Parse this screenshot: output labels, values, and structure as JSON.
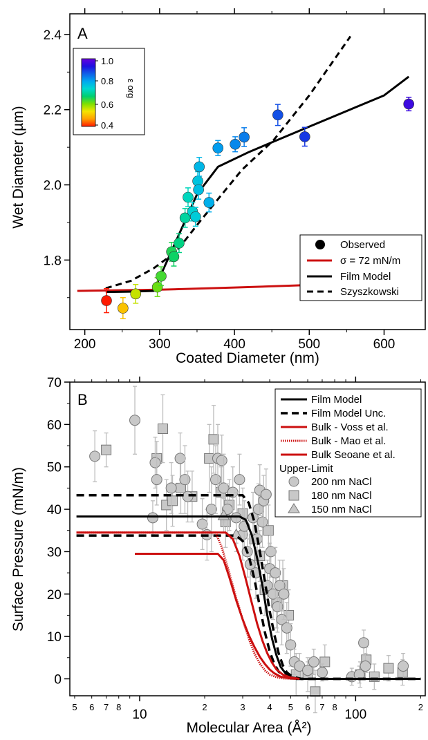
{
  "colors": {
    "black": "#000000",
    "red": "#cc1010",
    "gray_marker": "#c8c8c8",
    "errorbar_gray": "#bdbdbd"
  },
  "chart_data": [
    {
      "type": "scatter",
      "panel_label": "A",
      "xlabel": "Coated Diameter (nm)",
      "ylabel": "Wet Diameter (µm)",
      "xlim": [
        180,
        655
      ],
      "ylim": [
        1.615,
        2.455
      ],
      "x_ticks": [
        200,
        300,
        400,
        500,
        600
      ],
      "y_ticks": [
        1.8,
        2.0,
        2.2,
        2.4
      ],
      "y_tick_labels": [
        "1.8",
        "2.0",
        "2.2",
        "2.4"
      ],
      "colorbar": {
        "label": "ε org",
        "ticks": [
          "1.0",
          "0.8",
          "0.6",
          "0.4"
        ],
        "range": [
          0.4,
          1.0
        ],
        "colors": [
          "#ff1a00",
          "#ffa000",
          "#f5e400",
          "#7ee000",
          "#00d070",
          "#00d8d0",
          "#00a8f0",
          "#1060e8",
          "#1e10e0",
          "#6800e0"
        ]
      },
      "legend": {
        "position": "bottom-right",
        "entries": [
          "Observed",
          "σ = 72 mN/m",
          "Film Model",
          "Szyszkowski"
        ]
      },
      "points": [
        {
          "x": 229,
          "y": 1.692,
          "err": 0.032,
          "eps": 0.4
        },
        {
          "x": 251,
          "y": 1.672,
          "err": 0.028,
          "eps": 0.5
        },
        {
          "x": 268,
          "y": 1.71,
          "err": 0.025,
          "eps": 0.56
        },
        {
          "x": 297,
          "y": 1.728,
          "err": 0.025,
          "eps": 0.61
        },
        {
          "x": 302,
          "y": 1.757,
          "err": 0.025,
          "eps": 0.63
        },
        {
          "x": 316,
          "y": 1.822,
          "err": 0.025,
          "eps": 0.65
        },
        {
          "x": 319,
          "y": 1.809,
          "err": 0.025,
          "eps": 0.66
        },
        {
          "x": 326,
          "y": 1.845,
          "err": 0.025,
          "eps": 0.68
        },
        {
          "x": 334,
          "y": 1.912,
          "err": 0.025,
          "eps": 0.7
        },
        {
          "x": 338,
          "y": 1.967,
          "err": 0.025,
          "eps": 0.72
        },
        {
          "x": 344,
          "y": 1.929,
          "err": 0.025,
          "eps": 0.74
        },
        {
          "x": 348,
          "y": 1.915,
          "err": 0.025,
          "eps": 0.75
        },
        {
          "x": 351,
          "y": 2.01,
          "err": 0.025,
          "eps": 0.76
        },
        {
          "x": 352,
          "y": 1.987,
          "err": 0.025,
          "eps": 0.77
        },
        {
          "x": 353,
          "y": 2.048,
          "err": 0.025,
          "eps": 0.78
        },
        {
          "x": 366,
          "y": 1.953,
          "err": 0.025,
          "eps": 0.79
        },
        {
          "x": 378,
          "y": 2.098,
          "err": 0.02,
          "eps": 0.81
        },
        {
          "x": 401,
          "y": 2.108,
          "err": 0.02,
          "eps": 0.83
        },
        {
          "x": 413,
          "y": 2.127,
          "err": 0.025,
          "eps": 0.84
        },
        {
          "x": 458,
          "y": 2.186,
          "err": 0.028,
          "eps": 0.88
        },
        {
          "x": 494,
          "y": 2.128,
          "err": 0.025,
          "eps": 0.9
        },
        {
          "x": 633,
          "y": 2.215,
          "err": 0.018,
          "eps": 0.96
        }
      ],
      "series": [
        {
          "name": "σ = 72 mN/m",
          "x": [
            190,
            300,
            400,
            493
          ],
          "y": [
            1.718,
            1.721,
            1.727,
            1.733
          ]
        },
        {
          "name": "Film Model",
          "x": [
            228,
            260,
            292,
            350,
            378,
            420,
            500,
            600,
            633
          ],
          "y": [
            1.715,
            1.716,
            1.718,
            1.975,
            2.048,
            2.088,
            2.155,
            2.238,
            2.288
          ]
        },
        {
          "name": "Szyszkowski",
          "x": [
            228,
            262,
            292,
            322,
            352,
            378,
            410,
            452,
            500,
            555
          ],
          "y": [
            1.725,
            1.745,
            1.778,
            1.822,
            1.898,
            1.962,
            2.04,
            2.118,
            2.238,
            2.395
          ]
        }
      ]
    },
    {
      "type": "scatter",
      "panel_label": "B",
      "xlabel": "Molecular Area (Å²)",
      "ylabel": "Surface Pressure (mN/m)",
      "xscale": "log",
      "xlim": [
        4.75,
        210
      ],
      "ylim": [
        -4,
        70
      ],
      "y_ticks": [
        0,
        10,
        20,
        30,
        40,
        50,
        60,
        70
      ],
      "y_tick_labels": [
        "0",
        "10",
        "20",
        "30",
        "40",
        "50",
        "60",
        "70"
      ],
      "x_major_ticks": [
        10,
        100
      ],
      "x_major_labels": [
        "10",
        "100"
      ],
      "x_minor_label_values": [
        5,
        6,
        7,
        8,
        20,
        30,
        40,
        50,
        60,
        70,
        80,
        200
      ],
      "x_minor_labels": [
        "5",
        "6",
        "7",
        "8",
        "2",
        "3",
        "4",
        "5",
        "6",
        "7",
        "8",
        "2"
      ],
      "legend": {
        "position": "top-right",
        "entries": [
          "Film Model",
          "Film Model Unc.",
          "Bulk - Voss et al.",
          "Bulk - Mao et al.",
          "Bulk Seoane et al.",
          "Upper-Limit",
          "200 nm NaCl",
          "180 nm NaCl",
          "150 nm NaCl"
        ]
      },
      "circles": [
        [
          6.2,
          52.5,
          6
        ],
        [
          9.5,
          61,
          8
        ],
        [
          11.8,
          51,
          6
        ],
        [
          12,
          47,
          6
        ],
        [
          11.5,
          38,
          4
        ],
        [
          14,
          45,
          6
        ],
        [
          15.4,
          52,
          6
        ],
        [
          16.2,
          47,
          8
        ],
        [
          16.7,
          43,
          6
        ],
        [
          19.5,
          36.5,
          6
        ],
        [
          20.5,
          34,
          6
        ],
        [
          21.5,
          40,
          10
        ],
        [
          22.5,
          47,
          8
        ],
        [
          23,
          52,
          8
        ],
        [
          24,
          51.5,
          6
        ],
        [
          24.5,
          45,
          8
        ],
        [
          25.5,
          40,
          6
        ],
        [
          27,
          44,
          6
        ],
        [
          28,
          38,
          6
        ],
        [
          29,
          47,
          6
        ],
        [
          30,
          34,
          6
        ],
        [
          30.5,
          36,
          6
        ],
        [
          31.5,
          30,
          6
        ],
        [
          32.5,
          27,
          6
        ],
        [
          33.5,
          38,
          6
        ],
        [
          34.5,
          25,
          6
        ],
        [
          35,
          33,
          6
        ],
        [
          35.5,
          40,
          6
        ],
        [
          36,
          44.5,
          6
        ],
        [
          37,
          37,
          6
        ],
        [
          37.5,
          42,
          6
        ],
        [
          38.5,
          43.5,
          6
        ],
        [
          39,
          22,
          6
        ],
        [
          40,
          26,
          6
        ],
        [
          40.5,
          30,
          6
        ],
        [
          41.5,
          20,
          6
        ],
        [
          42.5,
          25,
          6
        ],
        [
          43.5,
          17,
          6
        ],
        [
          44.5,
          22,
          6
        ],
        [
          45.5,
          14,
          6
        ],
        [
          46.5,
          20,
          6
        ],
        [
          48,
          12,
          6
        ],
        [
          50,
          8,
          5
        ],
        [
          52,
          4,
          3
        ],
        [
          55,
          3,
          3
        ],
        [
          60,
          2,
          2
        ],
        [
          64,
          4,
          3
        ],
        [
          70,
          1.5,
          2
        ],
        [
          96,
          0.5,
          2
        ],
        [
          104,
          1,
          2
        ],
        [
          109,
          8.5,
          3
        ],
        [
          111,
          3,
          3
        ],
        [
          166,
          3,
          3
        ]
      ],
      "squares": [
        [
          7,
          54,
          4
        ],
        [
          12,
          52,
          4
        ],
        [
          12.8,
          59,
          8
        ],
        [
          13.3,
          41,
          6
        ],
        [
          14.2,
          42,
          6
        ],
        [
          15.5,
          45,
          6
        ],
        [
          17.5,
          43,
          6
        ],
        [
          21,
          52,
          8
        ],
        [
          22,
          56.5,
          8
        ],
        [
          23.8,
          44,
          6
        ],
        [
          25,
          37,
          6
        ],
        [
          26,
          41,
          6
        ],
        [
          30,
          39,
          6
        ],
        [
          34,
          33,
          6
        ],
        [
          36,
          29,
          6
        ],
        [
          38,
          21,
          6
        ],
        [
          39.5,
          35,
          6
        ],
        [
          43,
          18,
          6
        ],
        [
          46,
          22,
          6
        ],
        [
          49,
          15,
          6
        ],
        [
          53,
          1,
          5
        ],
        [
          60,
          1,
          4
        ],
        [
          65,
          -3,
          5
        ],
        [
          72,
          4,
          4
        ],
        [
          105,
          1,
          3
        ],
        [
          112,
          4.5,
          3
        ],
        [
          122,
          0.5,
          3
        ],
        [
          142,
          2.5,
          3
        ],
        [
          165,
          1.5,
          3
        ]
      ],
      "triangles": [
        [
          24.5,
          38.5,
          4
        ],
        [
          28,
          34,
          4
        ]
      ],
      "series": [
        {
          "name": "Film Model",
          "x": [
            5.1,
            29,
            31,
            33,
            35,
            37,
            39,
            41,
            43,
            45,
            47.5,
            50,
            55,
            65,
            200
          ],
          "y": [
            38.3,
            38.3,
            37.5,
            34,
            28.5,
            22,
            15,
            9.5,
            5.5,
            2.8,
            1.2,
            0.4,
            0,
            0,
            0
          ]
        },
        {
          "name": "Film Model Unc. upper",
          "x": [
            5.1,
            30,
            32,
            34,
            36,
            38,
            40,
            42,
            44,
            46,
            48,
            51,
            56,
            200
          ],
          "y": [
            43.3,
            43.3,
            41.5,
            37,
            30,
            23,
            16,
            10.5,
            6,
            3.2,
            1.5,
            0.5,
            0,
            0
          ]
        },
        {
          "name": "Film Model Unc. lower",
          "x": [
            5.1,
            28,
            30,
            32,
            34,
            36,
            38,
            40,
            42,
            44,
            47,
            52,
            200
          ],
          "y": [
            33.8,
            33.8,
            32.5,
            29,
            23.5,
            17,
            11,
            6.5,
            3.5,
            1.7,
            0.6,
            0,
            0
          ]
        },
        {
          "name": "Bulk - Voss et al.",
          "x": [
            5.1,
            25,
            27,
            29,
            31,
            33,
            35,
            37,
            39,
            41,
            43,
            46,
            50,
            55
          ],
          "y": [
            34.5,
            34.5,
            33,
            29,
            23.5,
            18,
            13,
            9,
            6,
            3.8,
            2.2,
            1,
            0.3,
            0
          ]
        },
        {
          "name": "Bulk - Mao et al.",
          "x": [
            5.1,
            22.5,
            24,
            26,
            28,
            30,
            32,
            34,
            36,
            38,
            40,
            43,
            46,
            50
          ],
          "y": [
            34.5,
            34.5,
            31,
            25,
            19,
            14,
            9.5,
            6,
            3.6,
            2,
            1,
            0.4,
            0.1,
            0
          ]
        },
        {
          "name": "Bulk Seoane et al.",
          "x": [
            9.5,
            23,
            24.5,
            26,
            28,
            30,
            32,
            34,
            36,
            38,
            40,
            42,
            45,
            49,
            53
          ],
          "y": [
            29.5,
            29.5,
            28,
            24,
            18.5,
            14,
            10.3,
            7.5,
            5.2,
            3.5,
            2.2,
            1.3,
            0.5,
            0.15,
            0
          ]
        }
      ]
    }
  ]
}
